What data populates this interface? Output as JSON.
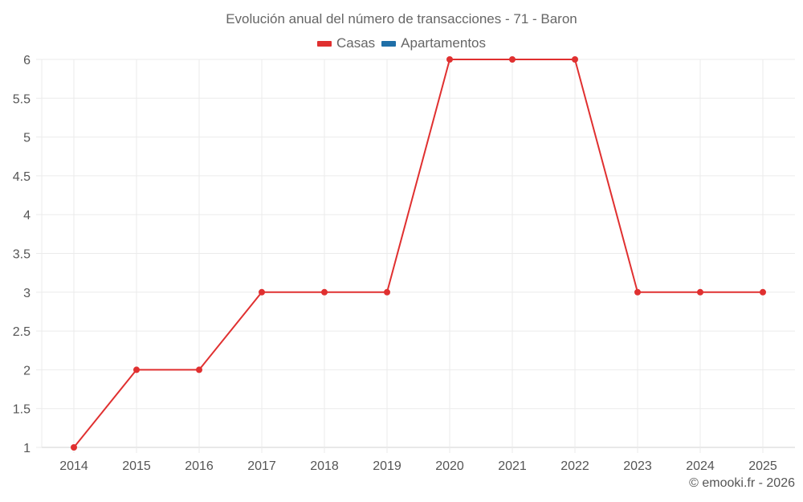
{
  "title": "Evolución anual del número de transacciones - 71 - Baron",
  "legend": [
    {
      "label": "Casas",
      "color": "#e03030"
    },
    {
      "label": "Apartamentos",
      "color": "#1f6fa8"
    }
  ],
  "footer": "© emooki.fr - 2026",
  "chart_data": {
    "type": "line",
    "title": "Evolución anual del número de transacciones - 71 - Baron",
    "xlabel": "",
    "ylabel": "",
    "categories": [
      "2014",
      "2015",
      "2016",
      "2017",
      "2018",
      "2019",
      "2020",
      "2021",
      "2022",
      "2023",
      "2024",
      "2025"
    ],
    "series": [
      {
        "name": "Casas",
        "color": "#e03030",
        "values": [
          1,
          2,
          2,
          3,
          3,
          3,
          6,
          6,
          6,
          3,
          3,
          3
        ]
      },
      {
        "name": "Apartamentos",
        "color": "#1f6fa8",
        "values": []
      }
    ],
    "ylim": [
      1,
      6
    ],
    "yticks": [
      "1",
      "1.5",
      "2",
      "2.5",
      "3",
      "3.5",
      "4",
      "4.5",
      "5",
      "5.5",
      "6"
    ],
    "grid": true,
    "legend_position": "top"
  }
}
